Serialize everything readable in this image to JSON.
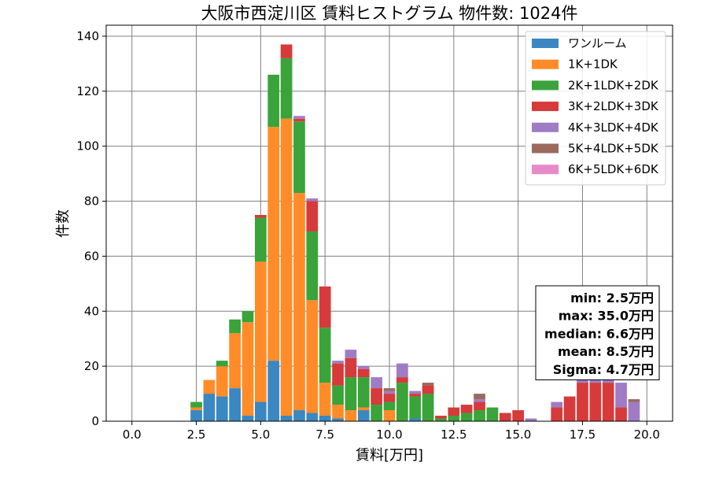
{
  "chart_data": {
    "type": "bar",
    "stacked": true,
    "title": "大阪市西淀川区 賃料ヒストグラム 物件数: 1024件",
    "xlabel": "賃料[万円]",
    "ylabel": "件数",
    "xlim": [
      -1,
      21
    ],
    "ylim": [
      0,
      144
    ],
    "xticks": [
      0.0,
      2.5,
      5.0,
      7.5,
      10.0,
      12.5,
      15.0,
      17.5,
      20.0
    ],
    "yticks": [
      0,
      20,
      40,
      60,
      80,
      100,
      120,
      140
    ],
    "grid": true,
    "legend_position": "top-right",
    "bin_width": 0.5,
    "bar_width": 0.45,
    "x": [
      2.5,
      3.0,
      3.5,
      4.0,
      4.5,
      5.0,
      5.5,
      6.0,
      6.5,
      7.0,
      7.5,
      8.0,
      8.5,
      9.0,
      9.5,
      10.0,
      10.5,
      11.0,
      11.5,
      12.0,
      12.5,
      13.0,
      13.5,
      14.0,
      14.5,
      15.0,
      15.5,
      16.0,
      16.5,
      17.0,
      17.5,
      18.0,
      18.5,
      19.0,
      19.5
    ],
    "series": [
      {
        "name": "ワンルーム",
        "color": "#3a87c1",
        "values": [
          4,
          10,
          9,
          12,
          2,
          7,
          22,
          2,
          4,
          3,
          2,
          1,
          0,
          4,
          0,
          0,
          0,
          1,
          0,
          0,
          0,
          0,
          0,
          0,
          0,
          0,
          0,
          0,
          0,
          0,
          0,
          0,
          0,
          0,
          0
        ]
      },
      {
        "name": "1K+1DK",
        "color": "#ff8c28",
        "values": [
          1,
          5,
          11,
          20,
          34,
          51,
          85,
          108,
          79,
          41,
          12,
          5,
          4,
          1,
          0,
          4,
          0,
          0,
          0,
          0,
          0,
          0,
          0,
          0,
          0,
          0,
          0,
          0,
          0,
          0,
          0,
          0,
          0,
          0,
          0
        ]
      },
      {
        "name": "2K+1LDK+2DK",
        "color": "#3aa33a",
        "values": [
          2,
          0,
          2,
          5,
          4,
          16,
          19,
          22,
          26,
          25,
          20,
          7,
          12,
          11,
          6,
          3,
          14,
          8,
          10,
          1,
          2,
          3,
          4,
          5,
          0,
          0,
          0,
          0,
          0,
          0,
          0,
          0,
          0,
          0,
          0
        ]
      },
      {
        "name": "3K+2LDK+3DK",
        "color": "#d63a3a",
        "values": [
          0,
          0,
          0,
          0,
          0,
          1,
          0,
          5,
          1,
          11,
          15,
          8,
          7,
          3,
          6,
          3,
          2,
          1,
          3,
          1,
          3,
          3,
          3,
          0,
          3,
          4,
          0,
          0,
          5,
          9,
          14,
          14,
          14,
          5,
          0
        ]
      },
      {
        "name": "4K+3LDK+4DK",
        "color": "#a07cc5",
        "values": [
          0,
          0,
          0,
          0,
          0,
          0,
          0,
          0,
          1,
          1,
          0,
          1,
          3,
          1,
          4,
          1,
          5,
          1,
          0,
          0,
          0,
          0,
          1,
          0,
          0,
          0,
          1,
          0,
          2,
          0,
          2,
          3,
          3,
          9,
          7
        ]
      },
      {
        "name": "5K+4LDK+5DK",
        "color": "#9a6a5c",
        "values": [
          0,
          0,
          0,
          0,
          0,
          0,
          0,
          0,
          0,
          0,
          0,
          0,
          0,
          0,
          0,
          1,
          0,
          0,
          1,
          0,
          0,
          0,
          2,
          0,
          0,
          0,
          0,
          0,
          0,
          0,
          0,
          0,
          0,
          0,
          1
        ]
      },
      {
        "name": "6K+5LDK+6DK",
        "color": "#e889c9",
        "values": [
          0,
          0,
          0,
          0,
          0,
          0,
          0,
          0,
          0,
          0,
          0,
          0,
          0,
          0,
          0,
          0,
          0,
          0,
          0,
          0,
          0,
          0,
          0,
          0,
          0,
          0,
          0,
          0,
          0,
          0,
          0,
          0,
          0,
          0,
          0
        ]
      }
    ],
    "stats": [
      {
        "key": "min",
        "value": "min: 2.5万円"
      },
      {
        "key": "max",
        "value": "max: 35.0万円"
      },
      {
        "key": "median",
        "value": "median: 6.6万円"
      },
      {
        "key": "mean",
        "value": "mean: 8.5万円"
      },
      {
        "key": "sigma",
        "value": "Sigma: 4.7万円"
      }
    ]
  }
}
